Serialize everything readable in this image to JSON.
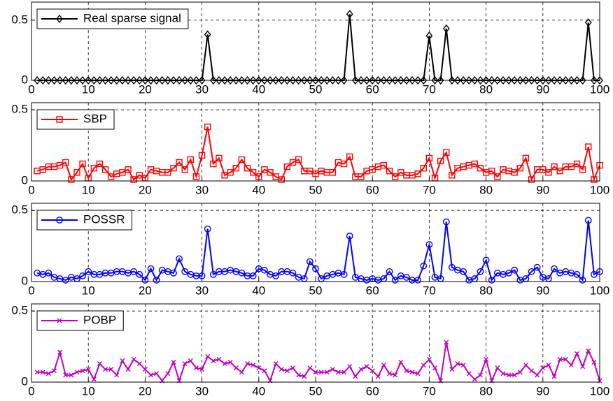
{
  "chart_data": [
    {
      "type": "line",
      "legend": "upper left",
      "grid": true,
      "xlim": [
        0,
        100
      ],
      "xticks": [
        0,
        10,
        20,
        30,
        40,
        50,
        60,
        70,
        80,
        90,
        100
      ],
      "ylim": [
        0,
        0.65
      ],
      "yticks": [
        0,
        0.5
      ],
      "x": [
        1,
        2,
        3,
        4,
        5,
        6,
        7,
        8,
        9,
        10,
        11,
        12,
        13,
        14,
        15,
        16,
        17,
        18,
        19,
        20,
        21,
        22,
        23,
        24,
        25,
        26,
        27,
        28,
        29,
        30,
        31,
        32,
        33,
        34,
        35,
        36,
        37,
        38,
        39,
        40,
        41,
        42,
        43,
        44,
        45,
        46,
        47,
        48,
        49,
        50,
        51,
        52,
        53,
        54,
        55,
        56,
        57,
        58,
        59,
        60,
        61,
        62,
        63,
        64,
        65,
        66,
        67,
        68,
        69,
        70,
        71,
        72,
        73,
        74,
        75,
        76,
        77,
        78,
        79,
        80,
        81,
        82,
        83,
        84,
        85,
        86,
        87,
        88,
        89,
        90,
        91,
        92,
        93,
        94,
        95,
        96,
        97,
        98,
        99,
        100
      ],
      "series": [
        {
          "name": "Real sparse signal",
          "color": "#000000",
          "marker": "diamond",
          "values": [
            0,
            0,
            0,
            0,
            0,
            0,
            0,
            0,
            0,
            0,
            0,
            0,
            0,
            0,
            0,
            0,
            0,
            0,
            0,
            0,
            0,
            0,
            0,
            0,
            0,
            0,
            0,
            0,
            0,
            0,
            0.38,
            0,
            0,
            0,
            0,
            0,
            0,
            0,
            0,
            0,
            0,
            0,
            0,
            0,
            0,
            0,
            0,
            0,
            0,
            0,
            0,
            0,
            0,
            0,
            0,
            0.55,
            0,
            0,
            0,
            0,
            0,
            0,
            0,
            0,
            0,
            0,
            0,
            0,
            0,
            0.37,
            0,
            0,
            0.43,
            0,
            0,
            0,
            0,
            0,
            0,
            0,
            0,
            0,
            0,
            0,
            0,
            0,
            0,
            0,
            0,
            0,
            0,
            0,
            0,
            0,
            0,
            0,
            0,
            0.48,
            0,
            0
          ]
        }
      ]
    },
    {
      "type": "line",
      "legend": "upper left",
      "grid": true,
      "xlim": [
        0,
        100
      ],
      "xticks": [
        0,
        10,
        20,
        30,
        40,
        50,
        60,
        70,
        80,
        90,
        100
      ],
      "ylim": [
        0,
        0.55
      ],
      "yticks": [
        0,
        0.5
      ],
      "x": [
        1,
        2,
        3,
        4,
        5,
        6,
        7,
        8,
        9,
        10,
        11,
        12,
        13,
        14,
        15,
        16,
        17,
        18,
        19,
        20,
        21,
        22,
        23,
        24,
        25,
        26,
        27,
        28,
        29,
        30,
        31,
        32,
        33,
        34,
        35,
        36,
        37,
        38,
        39,
        40,
        41,
        42,
        43,
        44,
        45,
        46,
        47,
        48,
        49,
        50,
        51,
        52,
        53,
        54,
        55,
        56,
        57,
        58,
        59,
        60,
        61,
        62,
        63,
        64,
        65,
        66,
        67,
        68,
        69,
        70,
        71,
        72,
        73,
        74,
        75,
        76,
        77,
        78,
        79,
        80,
        81,
        82,
        83,
        84,
        85,
        86,
        87,
        88,
        89,
        90,
        91,
        92,
        93,
        94,
        95,
        96,
        97,
        98,
        99,
        100
      ],
      "series": [
        {
          "name": "SBP",
          "color": "#ff0000",
          "marker": "square",
          "values": [
            0.07,
            0.08,
            0.1,
            0.1,
            0.11,
            0.13,
            0.01,
            0.06,
            0.12,
            0.02,
            0.09,
            0.12,
            0.08,
            0.03,
            0.05,
            0.06,
            0.08,
            0.01,
            0.04,
            0.02,
            0.08,
            0.07,
            0.06,
            0.06,
            0.09,
            0.13,
            0.08,
            0.15,
            0.03,
            0.18,
            0.38,
            0.12,
            0.16,
            0.04,
            0.06,
            0.09,
            0.15,
            0.09,
            0.06,
            0.03,
            0.08,
            0.06,
            0.03,
            0.01,
            0.1,
            0.13,
            0.15,
            0.07,
            0.07,
            0.05,
            0.07,
            0.06,
            0.06,
            0.13,
            0.12,
            0.17,
            0.03,
            0.03,
            0.07,
            0.08,
            0.1,
            0.11,
            0.07,
            0.03,
            0.06,
            0.04,
            0.04,
            0.05,
            0.09,
            0.16,
            0.02,
            0.14,
            0.2,
            0.04,
            0.09,
            0.1,
            0.11,
            0.12,
            0.09,
            0.06,
            0.07,
            0.03,
            0.08,
            0.07,
            0.06,
            0.09,
            0.16,
            0.01,
            0.08,
            0.08,
            0.06,
            0.1,
            0.07,
            0.1,
            0.1,
            0.12,
            0.08,
            0.24,
            0.01,
            0.11
          ]
        }
      ]
    },
    {
      "type": "line",
      "legend": "upper left",
      "grid": true,
      "xlim": [
        0,
        100
      ],
      "xticks": [
        0,
        10,
        20,
        30,
        40,
        50,
        60,
        70,
        80,
        90,
        100
      ],
      "ylim": [
        0,
        0.55
      ],
      "yticks": [
        0,
        0.5
      ],
      "x": [
        1,
        2,
        3,
        4,
        5,
        6,
        7,
        8,
        9,
        10,
        11,
        12,
        13,
        14,
        15,
        16,
        17,
        18,
        19,
        20,
        21,
        22,
        23,
        24,
        25,
        26,
        27,
        28,
        29,
        30,
        31,
        32,
        33,
        34,
        35,
        36,
        37,
        38,
        39,
        40,
        41,
        42,
        43,
        44,
        45,
        46,
        47,
        48,
        49,
        50,
        51,
        52,
        53,
        54,
        55,
        56,
        57,
        58,
        59,
        60,
        61,
        62,
        63,
        64,
        65,
        66,
        67,
        68,
        69,
        70,
        71,
        72,
        73,
        74,
        75,
        76,
        77,
        78,
        79,
        80,
        81,
        82,
        83,
        84,
        85,
        86,
        87,
        88,
        89,
        90,
        91,
        92,
        93,
        94,
        95,
        96,
        97,
        98,
        99,
        100
      ],
      "series": [
        {
          "name": "POSSR",
          "color": "#0000ff",
          "marker": "circle",
          "values": [
            0.06,
            0.05,
            0.06,
            0.03,
            0.02,
            0.01,
            0.03,
            0.02,
            0.04,
            0.07,
            0.05,
            0.05,
            0.06,
            0.06,
            0.07,
            0.07,
            0.06,
            0.07,
            0.05,
            0.01,
            0.09,
            0.01,
            0.08,
            0.07,
            0.06,
            0.16,
            0.07,
            0.05,
            0.04,
            0.04,
            0.37,
            0.05,
            0.07,
            0.07,
            0.08,
            0.07,
            0.06,
            0.04,
            0.04,
            0.09,
            0.08,
            0.05,
            0.04,
            0.07,
            0.07,
            0.06,
            0.03,
            0.02,
            0.14,
            0.09,
            0.02,
            0.04,
            0.05,
            0.06,
            0.05,
            0.32,
            0.03,
            0.02,
            0.01,
            0.02,
            0.01,
            0.02,
            0.07,
            0.01,
            0.04,
            0.03,
            0.01,
            0.01,
            0.11,
            0.26,
            0.03,
            0.02,
            0.42,
            0.1,
            0.08,
            0.07,
            0.01,
            0.02,
            0.07,
            0.15,
            0.01,
            0.06,
            0.05,
            0.06,
            0.08,
            0.01,
            0.02,
            0.07,
            0.1,
            0.03,
            0.02,
            0.09,
            0.06,
            0.07,
            0.06,
            0.05,
            0.01,
            0.43,
            0.05,
            0.07
          ]
        }
      ]
    },
    {
      "type": "line",
      "legend": "upper left",
      "grid": true,
      "xlim": [
        0,
        100
      ],
      "xticks": [
        0,
        10,
        20,
        30,
        40,
        50,
        60,
        70,
        80,
        90,
        100
      ],
      "ylim": [
        0,
        0.55
      ],
      "yticks": [
        0,
        0.5
      ],
      "x": [
        1,
        2,
        3,
        4,
        5,
        6,
        7,
        8,
        9,
        10,
        11,
        12,
        13,
        14,
        15,
        16,
        17,
        18,
        19,
        20,
        21,
        22,
        23,
        24,
        25,
        26,
        27,
        28,
        29,
        30,
        31,
        32,
        33,
        34,
        35,
        36,
        37,
        38,
        39,
        40,
        41,
        42,
        43,
        44,
        45,
        46,
        47,
        48,
        49,
        50,
        51,
        52,
        53,
        54,
        55,
        56,
        57,
        58,
        59,
        60,
        61,
        62,
        63,
        64,
        65,
        66,
        67,
        68,
        69,
        70,
        71,
        72,
        73,
        74,
        75,
        76,
        77,
        78,
        79,
        80,
        81,
        82,
        83,
        84,
        85,
        86,
        87,
        88,
        89,
        90,
        91,
        92,
        93,
        94,
        95,
        96,
        97,
        98,
        99,
        100
      ],
      "series": [
        {
          "name": "POBP",
          "color": "#bf00bf",
          "marker": "x",
          "values": [
            0.07,
            0.07,
            0.06,
            0.08,
            0.21,
            0.05,
            0.05,
            0.07,
            0.08,
            0.09,
            0.02,
            0.13,
            0.09,
            0.09,
            0.05,
            0.15,
            0.09,
            0.16,
            0.13,
            0.09,
            0.05,
            0.06,
            0.01,
            0.06,
            0.14,
            0.01,
            0.13,
            0.15,
            0.1,
            0.09,
            0.18,
            0.15,
            0.16,
            0.13,
            0.14,
            0.1,
            0.07,
            0.13,
            0.12,
            0.1,
            0.08,
            0.01,
            0.13,
            0.09,
            0.08,
            0.1,
            0.05,
            0.04,
            0.1,
            0.07,
            0.07,
            0.07,
            0.09,
            0.07,
            0.07,
            0.11,
            0.04,
            0.09,
            0.11,
            0.08,
            0.04,
            0.12,
            0.06,
            0.05,
            0.14,
            0.08,
            0.07,
            0.06,
            0.12,
            0.16,
            0.1,
            0.01,
            0.28,
            0.09,
            0.13,
            0.12,
            0.06,
            0.02,
            0.05,
            0.16,
            0.01,
            0.1,
            0.06,
            0.05,
            0.05,
            0.07,
            0.12,
            0.08,
            0.05,
            0.1,
            0.12,
            0.04,
            0.16,
            0.16,
            0.12,
            0.2,
            0.11,
            0.22,
            0.14,
            0.01
          ]
        }
      ]
    }
  ]
}
